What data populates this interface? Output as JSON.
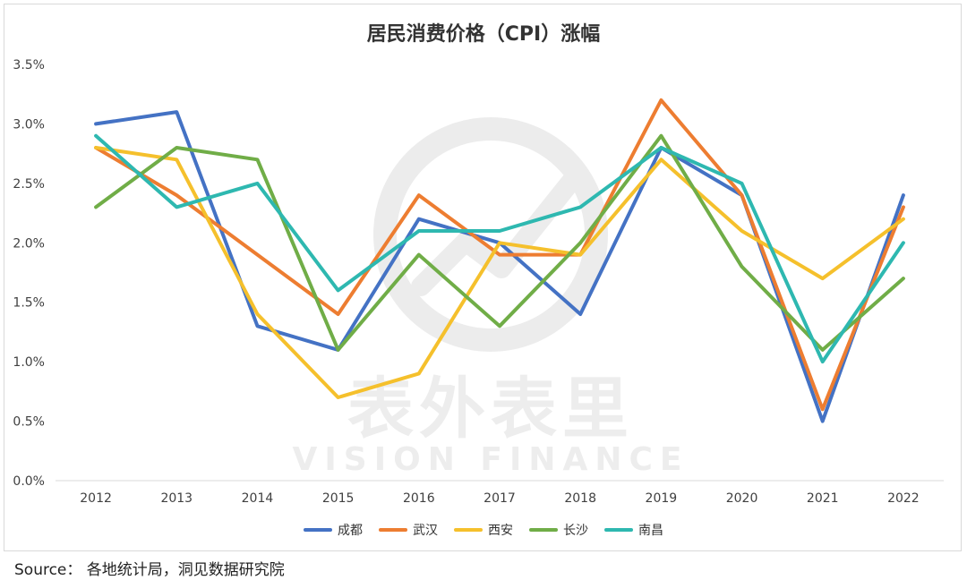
{
  "chart_data": {
    "type": "line",
    "title": "居民消费价格（CPI）涨幅",
    "x": [
      "2012",
      "2013",
      "2014",
      "2015",
      "2016",
      "2017",
      "2018",
      "2019",
      "2020",
      "2021",
      "2022"
    ],
    "ylim": [
      0,
      3.5
    ],
    "yticks": [
      "0.0%",
      "0.5%",
      "1.0%",
      "1.5%",
      "2.0%",
      "2.5%",
      "3.0%",
      "3.5%"
    ],
    "grid": false,
    "legend_position": "bottom",
    "series": [
      {
        "name": "成都",
        "color": "#4472C4",
        "values": [
          3.0,
          3.1,
          1.3,
          1.1,
          2.2,
          2.0,
          1.4,
          2.8,
          2.4,
          0.5,
          2.4
        ]
      },
      {
        "name": "武汉",
        "color": "#ED7D31",
        "values": [
          2.8,
          2.4,
          1.9,
          1.4,
          2.4,
          1.9,
          1.9,
          3.2,
          2.4,
          0.6,
          2.3
        ]
      },
      {
        "name": "西安",
        "color": "#F5C02C",
        "values": [
          2.8,
          2.7,
          1.4,
          0.7,
          0.9,
          2.0,
          1.9,
          2.7,
          2.1,
          1.7,
          2.2
        ]
      },
      {
        "name": "长沙",
        "color": "#70AD47",
        "values": [
          2.3,
          2.8,
          2.7,
          1.1,
          1.9,
          1.3,
          2.0,
          2.9,
          1.8,
          1.1,
          1.7
        ]
      },
      {
        "name": "南昌",
        "color": "#2EB8B0",
        "values": [
          2.9,
          2.3,
          2.5,
          1.6,
          2.1,
          2.1,
          2.3,
          2.8,
          2.5,
          1.0,
          2.0
        ]
      }
    ]
  },
  "watermark": {
    "cn_text": "表外表里",
    "en_text": "VISION FINANCE"
  },
  "source": "Source：  各地统计局，洞见数据研究院"
}
